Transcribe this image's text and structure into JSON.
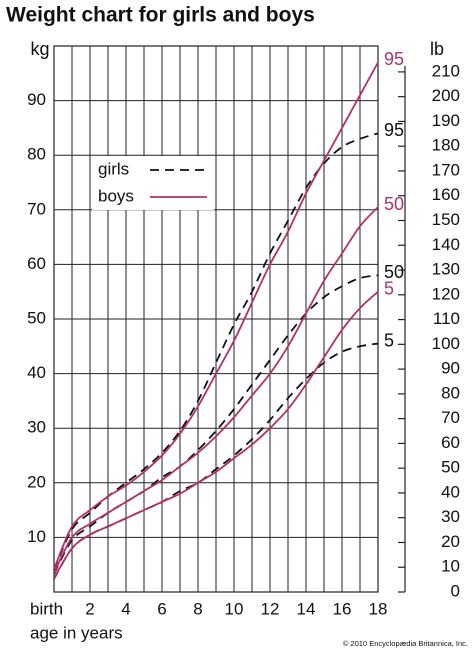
{
  "chart_data": {
    "type": "line",
    "title": "Weight chart for girls and boys",
    "y_label": "kg",
    "y2_label": "lb",
    "x_label": "age in years",
    "credit": "© 2010 Encyclopædia Britannica, Inc.",
    "xlim": [
      0,
      18
    ],
    "xticks": [
      {
        "value": 0,
        "label": "birth"
      },
      2,
      4,
      6,
      8,
      10,
      12,
      14,
      16,
      18
    ],
    "x_minor_ticks": [
      1,
      3,
      5,
      7,
      9,
      11,
      13,
      15,
      17
    ],
    "ylim": [
      0,
      100
    ],
    "yticks": [
      10,
      20,
      30,
      40,
      50,
      60,
      70,
      80,
      90
    ],
    "y2lim": [
      0,
      220.46
    ],
    "y2ticks": [
      0,
      10,
      20,
      30,
      40,
      50,
      60,
      70,
      80,
      90,
      100,
      110,
      120,
      130,
      140,
      150,
      160,
      170,
      180,
      190,
      200,
      210
    ],
    "grid": true,
    "x": [
      0,
      1,
      2,
      3,
      4,
      5,
      6,
      7,
      8,
      9,
      10,
      11,
      12,
      13,
      14,
      15,
      16,
      17,
      18
    ],
    "series": [
      {
        "name": "girls",
        "color": "#111111",
        "dashed": true,
        "curves": [
          {
            "label": "95",
            "values": [
              4,
              11.5,
              14.5,
              17.5,
              20,
              22.5,
              25.5,
              29.5,
              35,
              42,
              49,
              55,
              62,
              68,
              74,
              78.5,
              81.5,
              83,
              84
            ]
          },
          {
            "label": "50",
            "values": [
              3.3,
              9.5,
              12,
              14.5,
              16.5,
              18.5,
              21,
              23,
              26,
              29.5,
              33.5,
              38,
              42.5,
              47,
              51,
              54,
              56,
              57.5,
              58
            ]
          },
          {
            "label": "5",
            "values": [
              2.4,
              8,
              10.5,
              12,
              13.5,
              15,
              16.5,
              18.5,
              20,
              22.5,
              25,
              28,
              31.5,
              35.5,
              39,
              42,
              44,
              45,
              45.5
            ]
          }
        ]
      },
      {
        "name": "boys",
        "color": "#b3306b",
        "dashed": false,
        "curves": [
          {
            "label": "95",
            "values": [
              4.2,
              12,
              15,
              17.5,
              19.5,
              22,
              25,
              29,
              34,
              40,
              46,
              53,
              60,
              66,
              73,
              79,
              85,
              91,
              97
            ]
          },
          {
            "label": "50",
            "values": [
              3.5,
              10,
              12.5,
              14.5,
              16.5,
              18.5,
              20.5,
              23,
              25.5,
              28.5,
              32,
              36,
              40,
              45,
              51,
              57,
              62,
              67,
              70.5
            ]
          },
          {
            "label": "5",
            "values": [
              2.5,
              8,
              10.5,
              12,
              13.5,
              15,
              16.5,
              18,
              20,
              22,
              24.5,
              27,
              30,
              33.5,
              38,
              43,
              48,
              52,
              55
            ]
          }
        ]
      }
    ]
  }
}
